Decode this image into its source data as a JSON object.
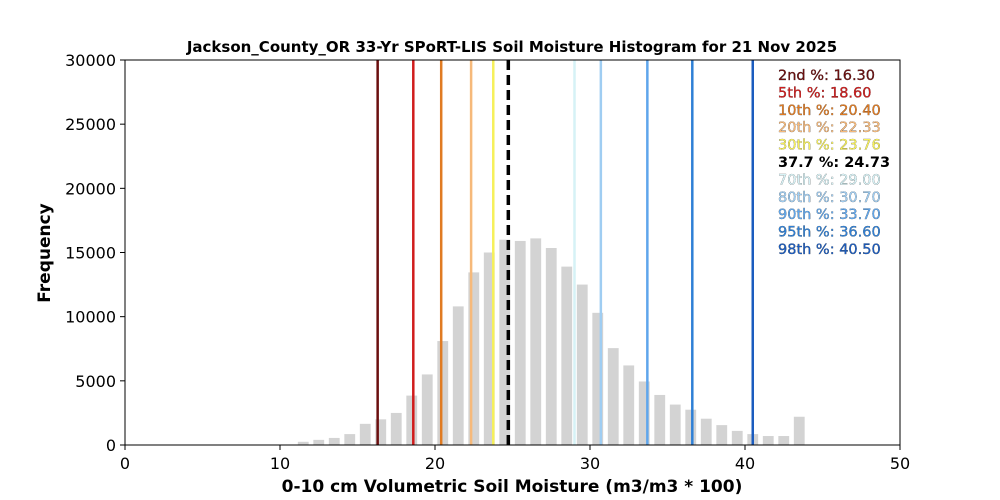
{
  "chart_data": {
    "type": "bar",
    "title": "Jackson_County_OR 33-Yr SPoRT-LIS Soil Moisture Histogram for 21 Nov 2025",
    "xlabel": "0-10 cm Volumetric Soil Moisture (m3/m3 * 100)",
    "ylabel": "Frequency",
    "xlim": [
      0,
      50
    ],
    "ylim": [
      0,
      30000
    ],
    "xticks": [
      "0",
      "10",
      "20",
      "30",
      "40",
      "50"
    ],
    "yticks": [
      "0",
      "5000",
      "10000",
      "15000",
      "20000",
      "25000",
      "30000"
    ],
    "bar_color": "#d3d3d3",
    "bin_width": 1,
    "x": [
      11.5,
      12.5,
      13.5,
      14.5,
      15.5,
      16.5,
      17.5,
      18.5,
      19.5,
      20.5,
      21.5,
      22.5,
      23.5,
      24.5,
      25.5,
      26.5,
      27.5,
      28.5,
      29.5,
      30.5,
      31.5,
      32.5,
      33.5,
      34.5,
      35.5,
      36.5,
      37.5,
      38.5,
      39.5,
      40.5,
      41.5,
      42.5,
      43.5
    ],
    "values": [
      250,
      400,
      550,
      850,
      1650,
      2000,
      2500,
      3850,
      5500,
      8100,
      10800,
      13450,
      15000,
      16000,
      15900,
      16100,
      15350,
      13900,
      12500,
      10300,
      7550,
      6200,
      4950,
      3900,
      3150,
      2750,
      2050,
      1550,
      1100,
      850,
      700,
      700,
      2200
    ],
    "percentile_lines": [
      {
        "label": "2nd %: 16.30",
        "x": 16.3,
        "color": "#6b0f0f"
      },
      {
        "label": "5th %: 18.60",
        "x": 18.6,
        "color": "#d01c1c"
      },
      {
        "label": "10th %: 20.40",
        "x": 20.4,
        "color": "#e07b22"
      },
      {
        "label": "20th %: 22.33",
        "x": 22.33,
        "color": "#f6b97a"
      },
      {
        "label": "30th %: 23.76",
        "x": 23.76,
        "color": "#f6f05a"
      },
      {
        "label": "37.7 %: 24.73",
        "x": 24.73,
        "color": "#000000",
        "dashed": true
      },
      {
        "label": "70th %: 29.00",
        "x": 29.0,
        "color": "#d6f2f6"
      },
      {
        "label": "80th %: 30.70",
        "x": 30.7,
        "color": "#9fcdf2"
      },
      {
        "label": "90th %: 33.70",
        "x": 33.7,
        "color": "#5fa6ec"
      },
      {
        "label": "95th %: 36.60",
        "x": 36.6,
        "color": "#2f80d6"
      },
      {
        "label": "98th %: 40.50",
        "x": 40.5,
        "color": "#1b5cbf"
      }
    ],
    "legend_placement": "top-right",
    "grid": false
  }
}
